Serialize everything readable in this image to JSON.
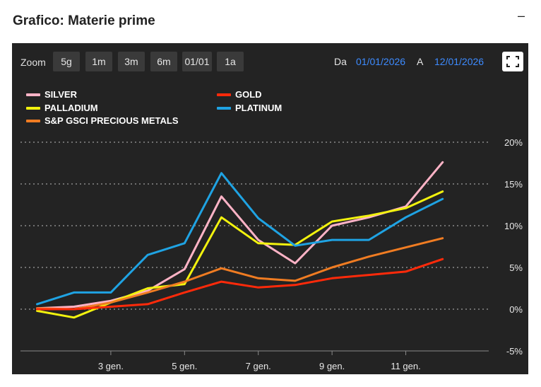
{
  "header": {
    "title": "Grafico: Materie prime",
    "minimize_label": "–"
  },
  "toolbar": {
    "zoom_label": "Zoom",
    "zoom_buttons": [
      "5g",
      "1m",
      "3m",
      "6m",
      "01/01",
      "1a"
    ],
    "from_label": "Da",
    "from_date": "01/01/2026",
    "to_label": "A",
    "to_date": "12/01/2026"
  },
  "colors": {
    "panel_bg": "#232323",
    "grid": "#8a8a8a",
    "accent_date": "#3d8bff"
  },
  "chart_data": {
    "type": "line",
    "title": "Grafico: Materie prime",
    "x": [
      1,
      2,
      3,
      4,
      5,
      6,
      7,
      8,
      9,
      10,
      11,
      12
    ],
    "x_ticks": [
      3,
      5,
      7,
      9,
      11
    ],
    "x_tick_labels": [
      "3 gen.",
      "5 gen.",
      "7 gen.",
      "9 gen.",
      "11 gen."
    ],
    "xlim": [
      0.55,
      13.25
    ],
    "y_ticks": [
      20,
      15,
      10,
      5,
      0,
      -5
    ],
    "y_tick_labels": [
      "20%",
      "15%",
      "10%",
      "5%",
      "0%",
      "-5%"
    ],
    "ylim": [
      -5,
      20
    ],
    "grid": "horizontal-dotted",
    "legend_position": "top-left",
    "series": [
      {
        "name": "SILVER",
        "color": "#ffb3c6",
        "values": [
          0.1,
          0.3,
          1.0,
          2.2,
          4.8,
          13.5,
          8.3,
          5.5,
          10.0,
          11.0,
          12.3,
          17.6
        ]
      },
      {
        "name": "PALLADIUM",
        "color": "#f2f20e",
        "values": [
          -0.2,
          -1.0,
          0.8,
          2.5,
          3.0,
          11.0,
          7.9,
          7.7,
          10.5,
          11.2,
          12.1,
          14.1
        ]
      },
      {
        "name": "S&P GSCI PRECIOUS METALS",
        "color": "#f07c22",
        "values": [
          0.1,
          0.0,
          0.8,
          2.0,
          3.3,
          4.9,
          3.7,
          3.4,
          5.0,
          6.3,
          7.4,
          8.5
        ]
      },
      {
        "name": "GOLD",
        "color": "#ff2a0a",
        "values": [
          0.0,
          0.0,
          0.3,
          0.6,
          2.0,
          3.3,
          2.6,
          2.9,
          3.7,
          4.1,
          4.5,
          6.0
        ]
      },
      {
        "name": "PLATINUM",
        "color": "#1fa3e3",
        "values": [
          0.6,
          2.0,
          2.0,
          6.5,
          7.9,
          16.3,
          10.9,
          7.6,
          8.3,
          8.3,
          11.0,
          13.2
        ]
      }
    ]
  }
}
